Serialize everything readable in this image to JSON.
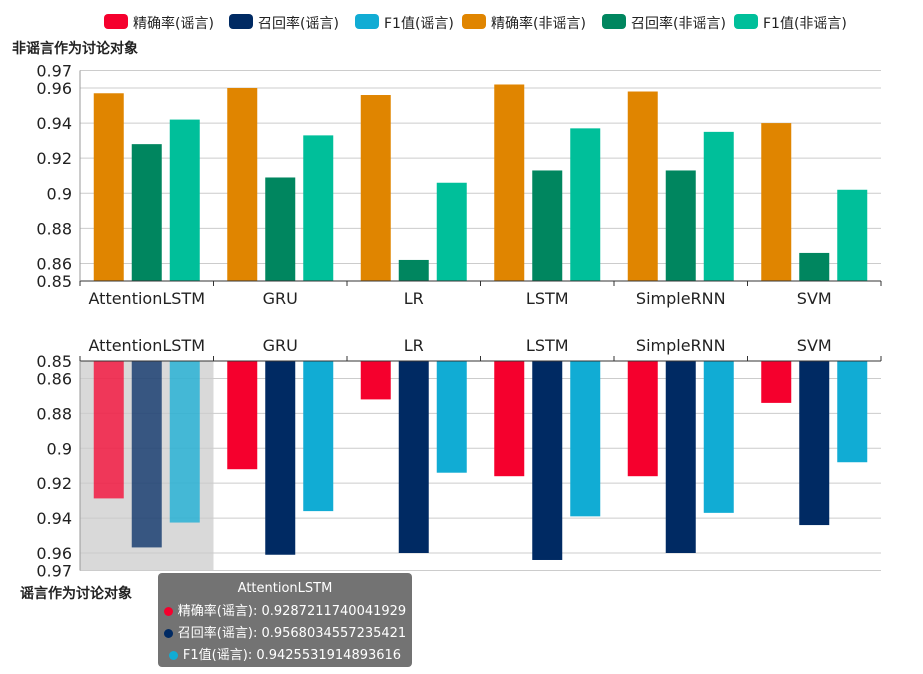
{
  "chart_data": {
    "type": "bar",
    "categories": [
      "AttentionLSTM",
      "GRU",
      "LR",
      "LSTM",
      "SimpleRNN",
      "SVM"
    ],
    "legend": [
      {
        "name": "精确率(谣言)",
        "color": "#f5002d"
      },
      {
        "name": "召回率(谣言)",
        "color": "#002a63"
      },
      {
        "name": "F1值(谣言)",
        "color": "#11acd4"
      },
      {
        "name": "精确率(非谣言)",
        "color": "#e08500"
      },
      {
        "name": "召回率(非谣言)",
        "color": "#00865f"
      },
      {
        "name": "F1值(非谣言)",
        "color": "#00bf9a"
      }
    ],
    "top_panel": {
      "title": "非谣言作为讨论对象",
      "ylim": [
        0.85,
        0.97
      ],
      "yticks": [
        "0.85",
        "0.86",
        "0.88",
        "0.9",
        "0.92",
        "0.94",
        "0.96",
        "0.97"
      ],
      "series": [
        {
          "name": "精确率(非谣言)",
          "color": "#e08500",
          "values": [
            0.957,
            0.96,
            0.956,
            0.962,
            0.958,
            0.94
          ]
        },
        {
          "name": "召回率(非谣言)",
          "color": "#00865f",
          "values": [
            0.928,
            0.909,
            0.862,
            0.913,
            0.913,
            0.866
          ]
        },
        {
          "name": "F1值(非谣言)",
          "color": "#00bf9a",
          "values": [
            0.942,
            0.933,
            0.906,
            0.937,
            0.935,
            0.902
          ]
        }
      ]
    },
    "bottom_panel": {
      "title": "谣言作为讨论对象",
      "ylim": [
        0.85,
        0.97
      ],
      "inverted": true,
      "yticks": [
        "0.85",
        "0.86",
        "0.88",
        "0.9",
        "0.92",
        "0.94",
        "0.96",
        "0.97"
      ],
      "series": [
        {
          "name": "精确率(谣言)",
          "color": "#f5002d",
          "values": [
            0.9287211740041929,
            0.912,
            0.872,
            0.916,
            0.916,
            0.874
          ]
        },
        {
          "name": "召回率(谣言)",
          "color": "#002a63",
          "values": [
            0.9568034557235421,
            0.961,
            0.96,
            0.964,
            0.96,
            0.944
          ]
        },
        {
          "name": "F1值(谣言)",
          "color": "#11acd4",
          "values": [
            0.9425531914893616,
            0.936,
            0.914,
            0.939,
            0.937,
            0.908
          ]
        }
      ]
    },
    "highlight_category_index": 0
  },
  "tooltip": {
    "title": "AttentionLSTM",
    "rows": [
      {
        "label": "精确率(谣言): 0.9287211740041929",
        "color": "#f5002d"
      },
      {
        "label": "召回率(谣言): 0.9568034557235421",
        "color": "#002a63"
      },
      {
        "label": "F1值(谣言): 0.9425531914893616",
        "color": "#11acd4"
      }
    ]
  }
}
